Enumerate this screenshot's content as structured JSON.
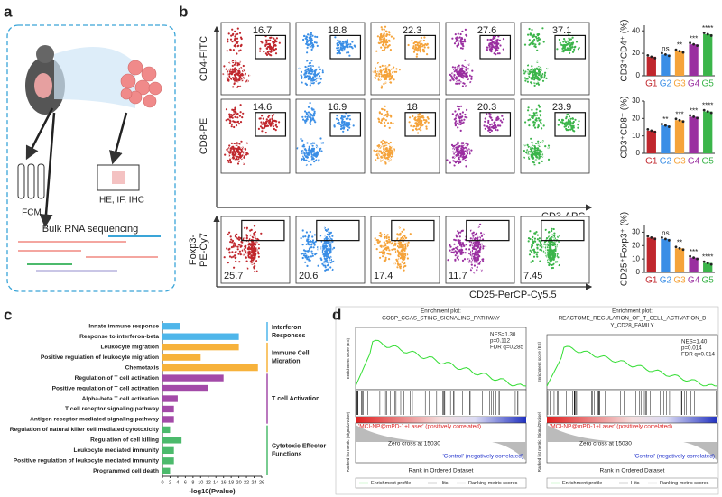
{
  "panel_labels": [
    "a",
    "b",
    "c",
    "d"
  ],
  "schematic": {
    "labels": [
      "FCM",
      "HE, IF, IHC",
      "Bulk RNA sequencing"
    ]
  },
  "flow": {
    "rows": [
      {
        "y_label_lines": [
          "CD4-FITC"
        ],
        "values": [
          16.7,
          18.8,
          22.3,
          27.6,
          37.1
        ]
      },
      {
        "y_label_lines": [
          "CD8-PE"
        ],
        "values": [
          14.6,
          16.9,
          18.0,
          20.3,
          23.9
        ]
      },
      {
        "y_label_lines": [
          "Foxp3-",
          "PE-Cy7"
        ],
        "values": [
          25.7,
          20.6,
          17.4,
          11.7,
          7.45
        ]
      }
    ],
    "x_labels": [
      "CD3-APC",
      "CD25-PerCP-Cy5.5"
    ]
  },
  "chart_data": [
    {
      "type": "bar",
      "y_label": "CD3⁺CD4⁺ (%)",
      "categories": [
        "G1",
        "G2",
        "G3",
        "G4",
        "G5"
      ],
      "colors": [
        "#c0272d",
        "#3a8ee6",
        "#f5a33a",
        "#9a2fa0",
        "#3bb54a"
      ],
      "values": [
        17,
        19,
        22,
        28,
        37
      ],
      "significance": [
        null,
        "ns",
        "**",
        "***",
        "****"
      ],
      "ylim": [
        0,
        45
      ],
      "yticks": [
        0,
        20,
        40
      ]
    },
    {
      "type": "bar",
      "y_label": "CD3⁺CD8⁺ (%)",
      "categories": [
        "G1",
        "G2",
        "G3",
        "G4",
        "G5"
      ],
      "colors": [
        "#c0272d",
        "#3a8ee6",
        "#f5a33a",
        "#9a2fa0",
        "#3bb54a"
      ],
      "values": [
        13,
        16,
        19,
        21,
        24
      ],
      "significance": [
        null,
        "**",
        "***",
        "***",
        "****"
      ],
      "ylim": [
        0,
        30
      ],
      "yticks": [
        0,
        10,
        20,
        30
      ]
    },
    {
      "type": "bar",
      "y_label": "CD25⁺Foxp3⁺ (%)",
      "categories": [
        "G1",
        "G2",
        "G3",
        "G4",
        "G5"
      ],
      "colors": [
        "#c0272d",
        "#3a8ee6",
        "#f5a33a",
        "#9a2fa0",
        "#3bb54a"
      ],
      "values": [
        26,
        25,
        18,
        11,
        7
      ],
      "significance": [
        null,
        "ns",
        "**",
        "***",
        "****"
      ],
      "ylim": [
        0,
        35
      ],
      "yticks": [
        0,
        10,
        20,
        30
      ]
    },
    {
      "type": "hbar",
      "x_label": "-log10(Pvalue)",
      "categories": [
        "Innate immune response",
        "Response to interferon-beta",
        "Leukocyte migration",
        "Positive regulation of leukocyte migration",
        "Chemotaxis",
        "Regulation of T cell activation",
        "Positive regulation of T cell activation",
        "Alpha-beta T cell activation",
        "T cell receptor signaling pathway",
        "Antigen receptor-mediated signaling pathway",
        "Regulation of natural killer cell mediated cytotoxicity",
        "Regulation of cell killing",
        "Leukocyte mediated immunity",
        "Positive regulation of leukocyte mediated immunity",
        "Programmed cell death"
      ],
      "values": [
        4.5,
        20,
        20,
        10,
        25,
        16,
        12,
        4,
        3,
        3,
        2,
        5,
        3,
        3,
        2
      ],
      "colors": [
        "#4fb6ea",
        "#4fb6ea",
        "#f7b23b",
        "#f7b23b",
        "#f7b23b",
        "#a34aa8",
        "#a34aa8",
        "#a34aa8",
        "#a34aa8",
        "#a34aa8",
        "#4cba6c",
        "#4cba6c",
        "#4cba6c",
        "#4cba6c",
        "#4cba6c"
      ],
      "groups": [
        {
          "lines": [
            "Interferon",
            "Responses"
          ],
          "color": "#4fb6ea"
        },
        {
          "lines": [
            "Immune Cell",
            "Migration"
          ],
          "color": "#f7b23b"
        },
        {
          "lines": [
            "T cell Activation"
          ],
          "color": "#a34aa8"
        },
        {
          "lines": [
            "Cytotoxic Effector",
            "Functions"
          ],
          "color": "#4cba6c"
        }
      ],
      "xlim": [
        0,
        26
      ],
      "xticks": [
        0,
        2,
        4,
        6,
        8,
        10,
        12,
        14,
        16,
        18,
        20,
        22,
        24,
        26
      ]
    }
  ],
  "gsea": {
    "plots": [
      {
        "title_lines": [
          "Enrichment plot:",
          "GOBP_CGAS_STING_SIGNALING_PATHWAY"
        ],
        "stats": [
          "NES=1.30",
          "p=0.112",
          "FDR q=0.285"
        ]
      },
      {
        "title_lines": [
          "Enrichment plot:",
          "REACTOME_REGULATION_OF_T_CELL_ACTIVATION_B",
          "Y_CD28_FAMILY"
        ],
        "stats": [
          "NES=1.40",
          "p=0.014",
          "FDR q=0.014"
        ]
      }
    ],
    "es_label": "Enrichment score (ES)",
    "metric_label": "Ranked list metric (Signal2Noise)",
    "pos_label": "'MCI-NP@mPD-1+Laser' (positively correlated)",
    "zero_cross": "Zero cross at 15030",
    "neg_label": "'Control' (negatively correlated)",
    "x_label": "Rank in Ordered Dataset",
    "legend": [
      "Enrichment profile",
      "Hits",
      "Ranking metric scores"
    ]
  }
}
